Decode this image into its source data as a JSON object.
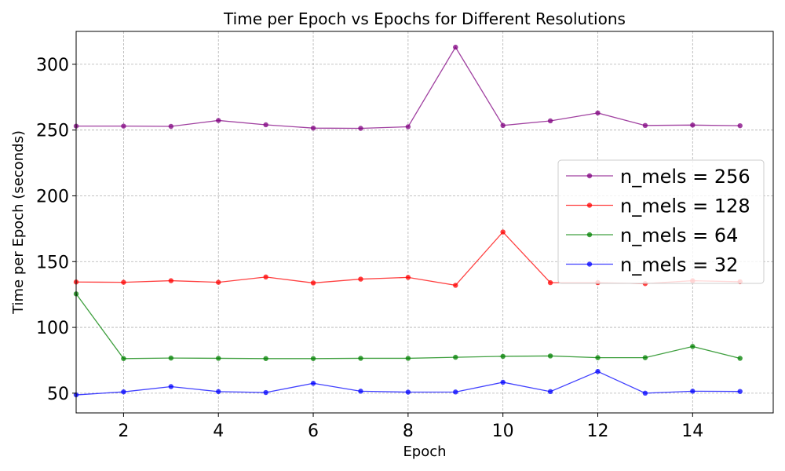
{
  "chart_data": {
    "type": "line",
    "title": "Time per Epoch vs Epochs for Different Resolutions",
    "xlabel": "Epoch",
    "ylabel": "Time per Epoch (seconds)",
    "xlim": [
      1,
      15.7
    ],
    "ylim": [
      35,
      325
    ],
    "xticks": [
      2,
      4,
      6,
      8,
      10,
      12,
      14
    ],
    "yticks": [
      50,
      100,
      150,
      200,
      250,
      300
    ],
    "grid": true,
    "legend_position": "center-right",
    "x": [
      1,
      2,
      3,
      4,
      5,
      6,
      7,
      8,
      9,
      10,
      11,
      12,
      13,
      14,
      15
    ],
    "series": [
      {
        "name": "n_mels = 256",
        "color": "#800080",
        "values": [
          253,
          253,
          252.8,
          257.3,
          254,
          251.5,
          251.3,
          252.5,
          313,
          253.5,
          257,
          263,
          253.5,
          253.8,
          253.3
        ]
      },
      {
        "name": "n_mels = 128",
        "color": "#ff0000",
        "values": [
          134.5,
          134.3,
          135.5,
          134.3,
          138.3,
          133.8,
          136.7,
          138,
          132,
          172.5,
          134,
          134,
          133.3,
          135.5,
          134.7
        ]
      },
      {
        "name": "n_mels = 64",
        "color": "#008000",
        "values": [
          125.5,
          76.3,
          76.7,
          76.5,
          76.3,
          76.3,
          76.5,
          76.5,
          77.3,
          78,
          78.3,
          77,
          77,
          85.5,
          76.5
        ]
      },
      {
        "name": "n_mels = 32",
        "color": "#0000ff",
        "values": [
          48.7,
          51,
          55,
          51.2,
          50.5,
          57.5,
          51.5,
          50.8,
          50.9,
          58.3,
          51.2,
          66.5,
          50,
          51.5,
          51.3
        ]
      }
    ]
  }
}
